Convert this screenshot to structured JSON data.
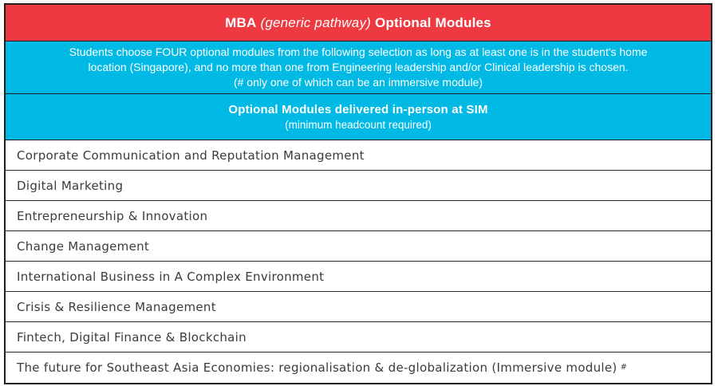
{
  "header": {
    "bold_prefix": "MBA",
    "italic_mid": "(generic pathway)",
    "bold_suffix": "Optional Modules"
  },
  "note": {
    "lines": [
      "Students choose FOUR optional modules from the following selection as long as at least one is in the student's home",
      "location (Singapore), and no more than one from Engineering leadership and/or Clinical leadership is chosen.",
      "(# only one of which can be an immersive module)"
    ]
  },
  "section": {
    "title": "Optional Modules delivered in-person at SIM",
    "subtitle": "(minimum headcount required)"
  },
  "modules": [
    {
      "name": "Corporate Communication and Reputation Management",
      "marker": ""
    },
    {
      "name": "Digital Marketing",
      "marker": ""
    },
    {
      "name": "Entrepreneurship & Innovation",
      "marker": ""
    },
    {
      "name": "Change Management",
      "marker": ""
    },
    {
      "name": "International Business in A Complex Environment",
      "marker": ""
    },
    {
      "name": "Crisis & Resilience Management",
      "marker": ""
    },
    {
      "name": "Fintech, Digital Finance & Blockchain",
      "marker": ""
    },
    {
      "name": "The future for Southeast Asia Economies: regionalisation & de-globalization (Immersive module)",
      "marker": "#"
    }
  ],
  "colors": {
    "header_red": "#ee3940",
    "banner_cyan": "#00b9e5",
    "border": "#1f1f1f",
    "row_text": "#3b3b3b",
    "banner_text": "#ffffff"
  }
}
